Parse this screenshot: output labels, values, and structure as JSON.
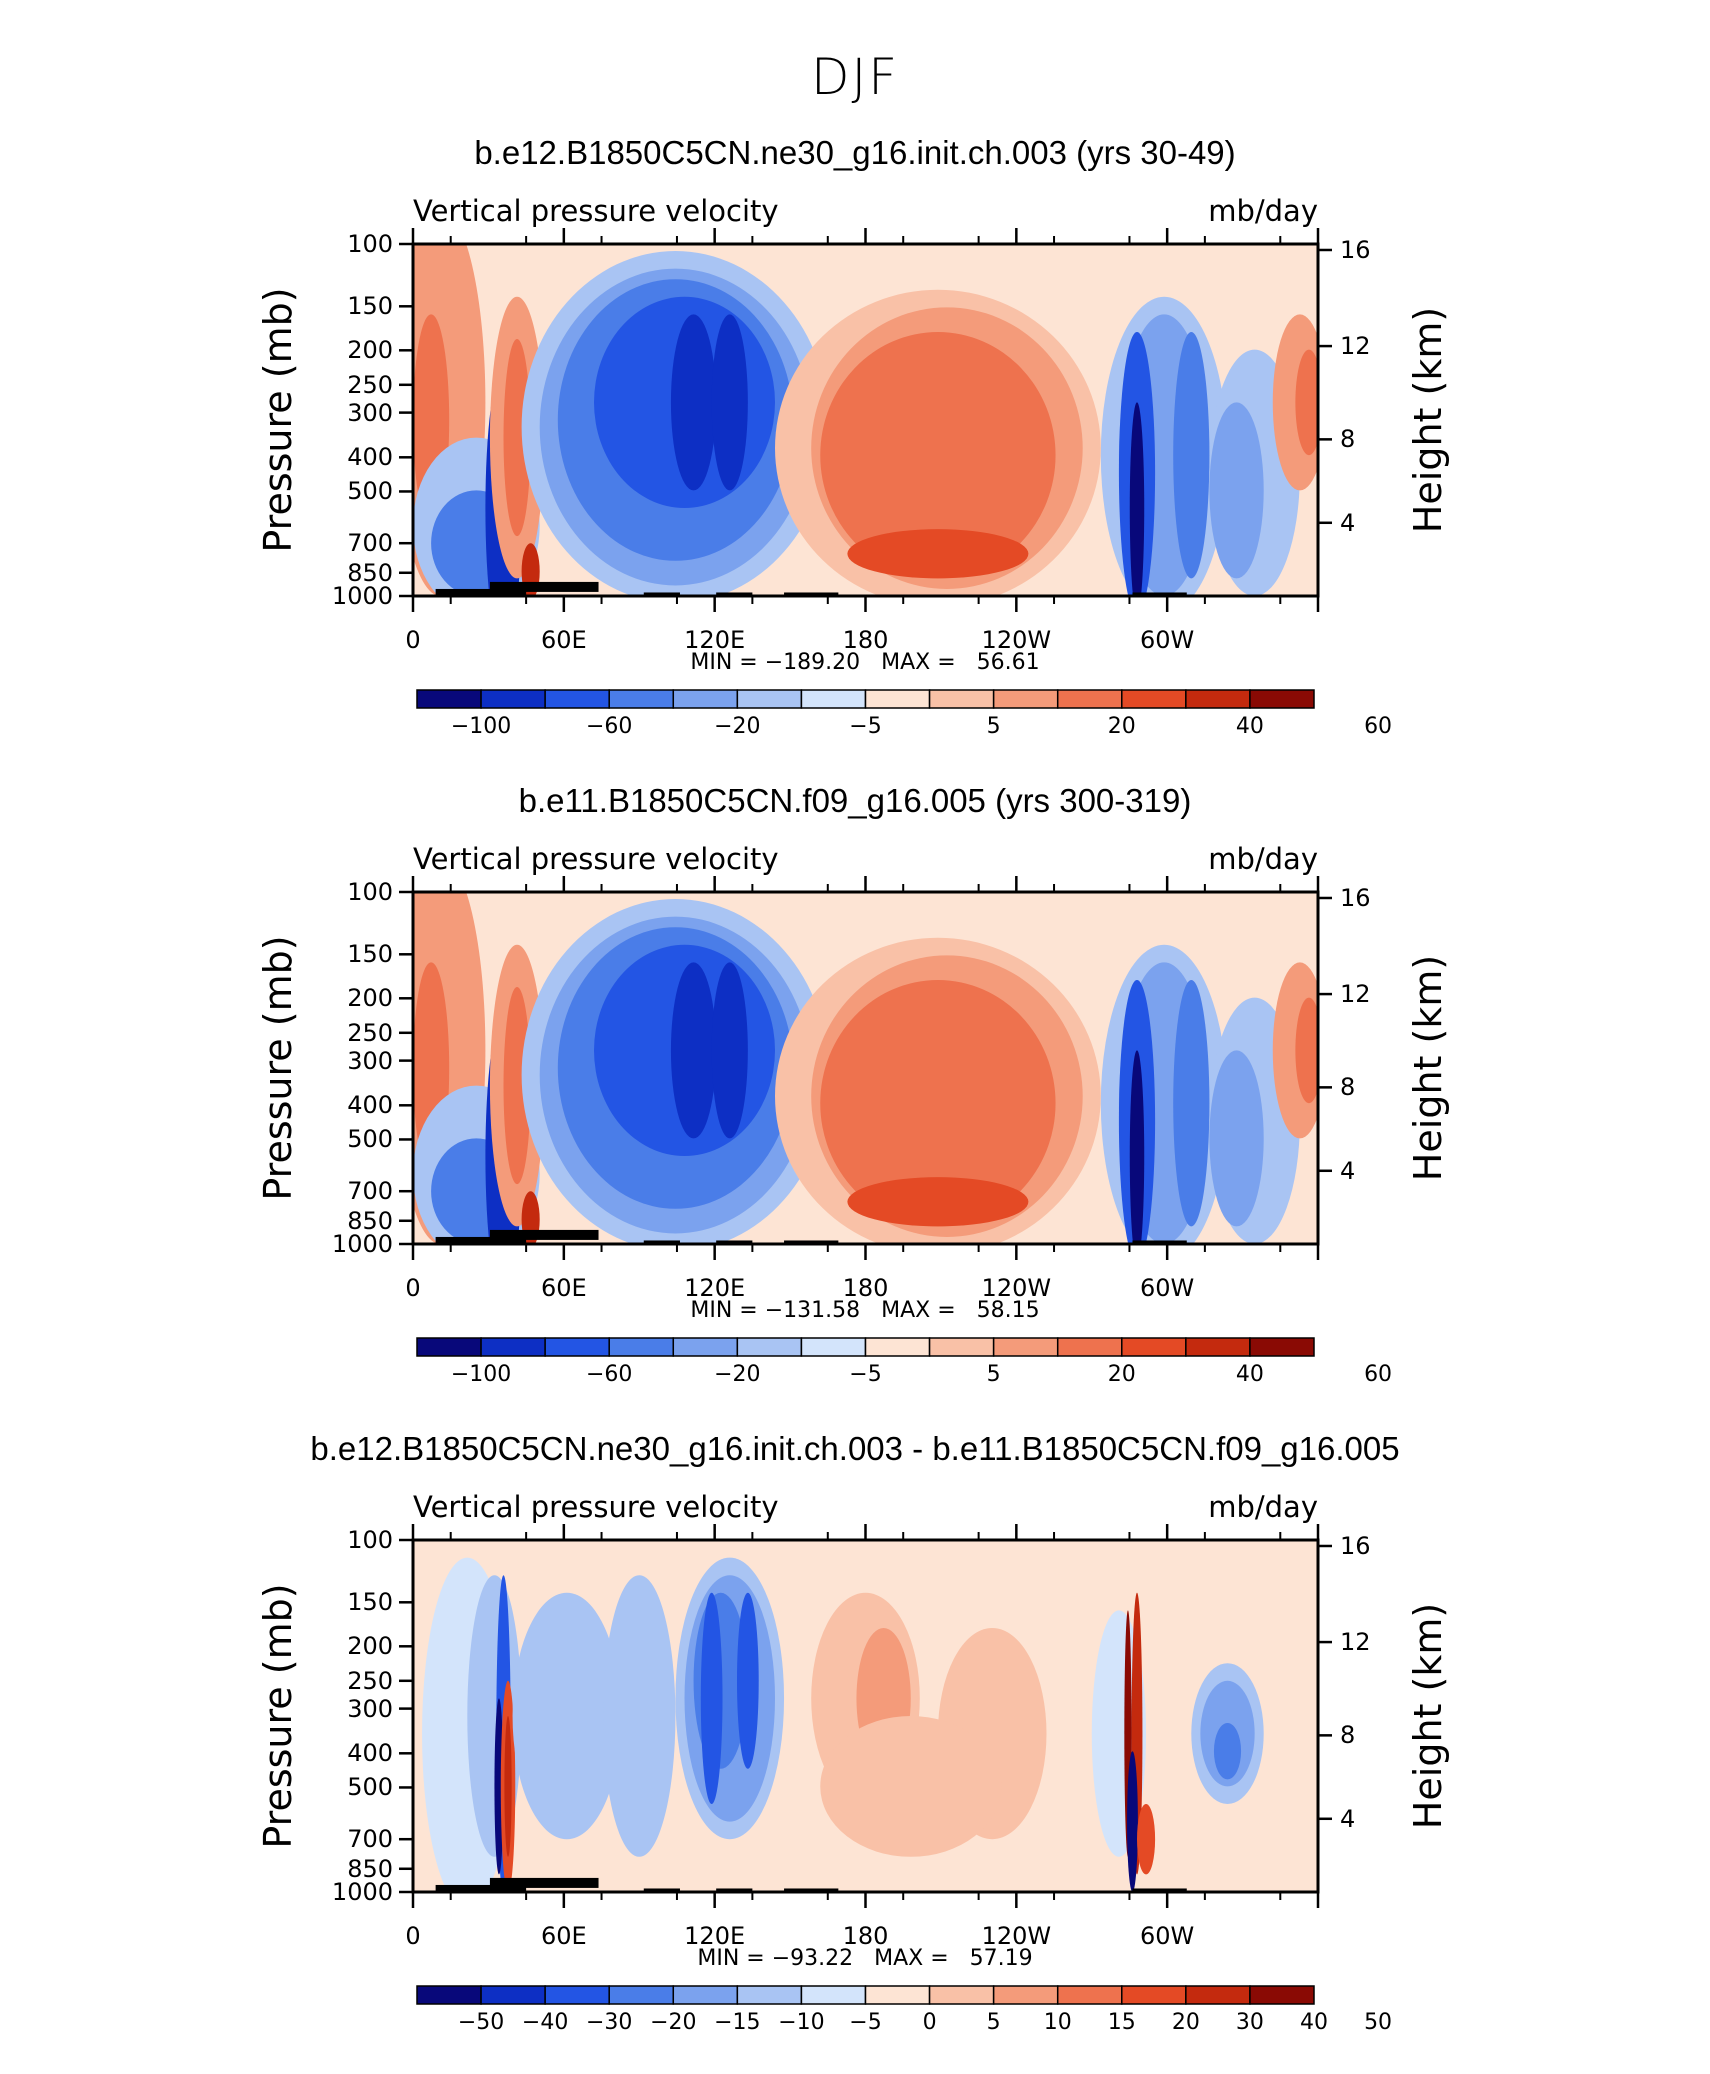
{
  "figure": {
    "title": "DJF"
  },
  "chart_data": [
    {
      "type": "heatmap",
      "title": "b.e12.B1850C5CN.ne30_g16.init.ch.003 (yrs 30-49)",
      "variable": "Vertical pressure velocity",
      "units": "mb/day",
      "ylabel": "Pressure (mb)",
      "ylabel_right": "Height (km)",
      "x_ticks": [
        "0",
        "60E",
        "120E",
        "180",
        "120W",
        "60W"
      ],
      "y_ticks": [
        "100",
        "150",
        "200",
        "250",
        "300",
        "400",
        "500",
        "700",
        "850",
        "1000"
      ],
      "y_ticks_right": [
        "16",
        "12",
        "8",
        "4"
      ],
      "stats": "MIN = −189.20   MAX =   56.61",
      "colorbar_labels": [
        "−100",
        "−60",
        "−20",
        "−5",
        "5",
        "20",
        "40",
        "60"
      ],
      "colorbar_colors": [
        "#08087a",
        "#0d2fc4",
        "#2355e4",
        "#4a7de8",
        "#7ba2ee",
        "#a9c4f3",
        "#d3e4fb",
        "#fde4d4",
        "#f9c1a7",
        "#f49b7a",
        "#ee724e",
        "#e44a25",
        "#c42a0e",
        "#8a0a04"
      ]
    },
    {
      "type": "heatmap",
      "title": "b.e11.B1850C5CN.f09_g16.005 (yrs 300-319)",
      "variable": "Vertical pressure velocity",
      "units": "mb/day",
      "ylabel": "Pressure (mb)",
      "ylabel_right": "Height (km)",
      "x_ticks": [
        "0",
        "60E",
        "120E",
        "180",
        "120W",
        "60W"
      ],
      "y_ticks": [
        "100",
        "150",
        "200",
        "250",
        "300",
        "400",
        "500",
        "700",
        "850",
        "1000"
      ],
      "y_ticks_right": [
        "16",
        "12",
        "8",
        "4"
      ],
      "stats": "MIN = −131.58   MAX =   58.15",
      "colorbar_labels": [
        "−100",
        "−60",
        "−20",
        "−5",
        "5",
        "20",
        "40",
        "60"
      ],
      "colorbar_colors": [
        "#08087a",
        "#0d2fc4",
        "#2355e4",
        "#4a7de8",
        "#7ba2ee",
        "#a9c4f3",
        "#d3e4fb",
        "#fde4d4",
        "#f9c1a7",
        "#f49b7a",
        "#ee724e",
        "#e44a25",
        "#c42a0e",
        "#8a0a04"
      ]
    },
    {
      "type": "heatmap",
      "title": "b.e12.B1850C5CN.ne30_g16.init.ch.003 - b.e11.B1850C5CN.f09_g16.005",
      "variable": "Vertical pressure velocity",
      "units": "mb/day",
      "ylabel": "Pressure (mb)",
      "ylabel_right": "Height (km)",
      "x_ticks": [
        "0",
        "60E",
        "120E",
        "180",
        "120W",
        "60W"
      ],
      "y_ticks": [
        "100",
        "150",
        "200",
        "250",
        "300",
        "400",
        "500",
        "700",
        "850",
        "1000"
      ],
      "y_ticks_right": [
        "16",
        "12",
        "8",
        "4"
      ],
      "stats": "MIN = −93.22   MAX =   57.19",
      "colorbar_labels": [
        "−50",
        "−40",
        "−30",
        "−20",
        "−15",
        "−10",
        "−5",
        "0",
        "5",
        "10",
        "15",
        "20",
        "30",
        "40",
        "50"
      ],
      "colorbar_colors": [
        "#08087a",
        "#0d2fc4",
        "#2355e4",
        "#4a7de8",
        "#7ba2ee",
        "#a9c4f3",
        "#d3e4fb",
        "#fde4d4",
        "#f9c1a7",
        "#f49b7a",
        "#ee724e",
        "#e44a25",
        "#c42a0e",
        "#8a0a04"
      ]
    }
  ]
}
